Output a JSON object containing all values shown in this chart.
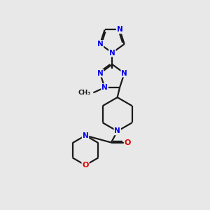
{
  "background_color": "#e8e8e8",
  "bond_color": "#1a1a1a",
  "N_color": "#0000ee",
  "O_color": "#dd0000",
  "line_width": 1.6,
  "figsize": [
    3.0,
    3.0
  ],
  "dpi": 100,
  "xlim": [
    0,
    10
  ],
  "ylim": [
    0,
    10
  ]
}
